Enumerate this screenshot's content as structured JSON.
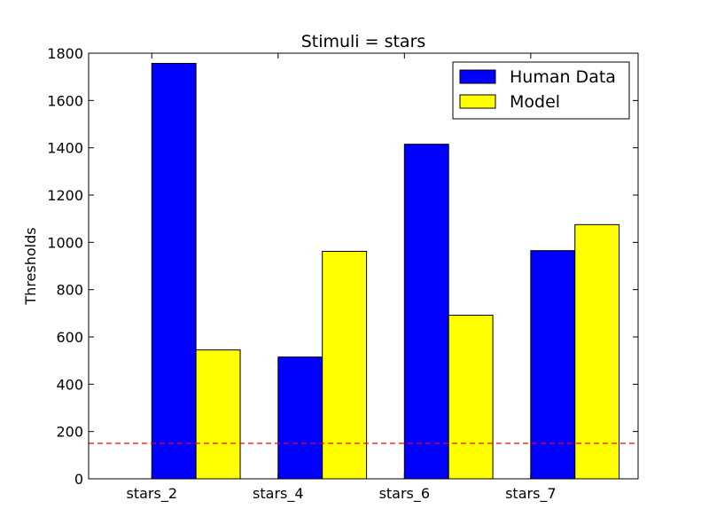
{
  "chart_data": {
    "type": "bar",
    "title": "Stimuli = stars",
    "xlabel": "",
    "ylabel": "Thresholds",
    "categories": [
      "stars_2",
      "stars_4",
      "stars_6",
      "stars_7"
    ],
    "series": [
      {
        "name": "Human Data",
        "values": [
          1757,
          515,
          1415,
          965
        ],
        "color": "#0000ff"
      },
      {
        "name": "Model",
        "values": [
          545,
          962,
          692,
          1075
        ],
        "color": "#ffff00"
      }
    ],
    "ylim": [
      0,
      1800
    ],
    "yticks": [
      0,
      200,
      400,
      600,
      800,
      1000,
      1200,
      1400,
      1600,
      1800
    ],
    "reference_line": {
      "y": 150,
      "color": "#ff0000",
      "style": "dashed"
    },
    "legend_position": "top-right",
    "grid": false
  }
}
